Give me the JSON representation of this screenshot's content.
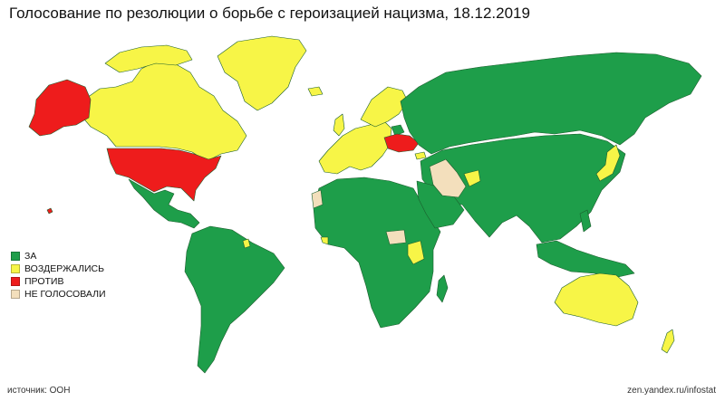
{
  "title": "Голосование по резолюции о борьбе с героизацией нацизма, 18.12.2019",
  "legend": {
    "items": [
      {
        "label": "ЗА",
        "color": "#1e9e4a"
      },
      {
        "label": "ВОЗДЕРЖАЛИСЬ",
        "color": "#f7f547"
      },
      {
        "label": "ПРОТИВ",
        "color": "#ee1c1c"
      },
      {
        "label": "НЕ ГОЛОСОВАЛИ",
        "color": "#f3dfbc"
      }
    ]
  },
  "source": "источник: ООН",
  "credit": "zen.yandex.ru/infostat",
  "colors": {
    "for": "#1e9e4a",
    "abstain": "#f7f547",
    "against": "#ee1c1c",
    "no_vote": "#f3dfbc"
  }
}
